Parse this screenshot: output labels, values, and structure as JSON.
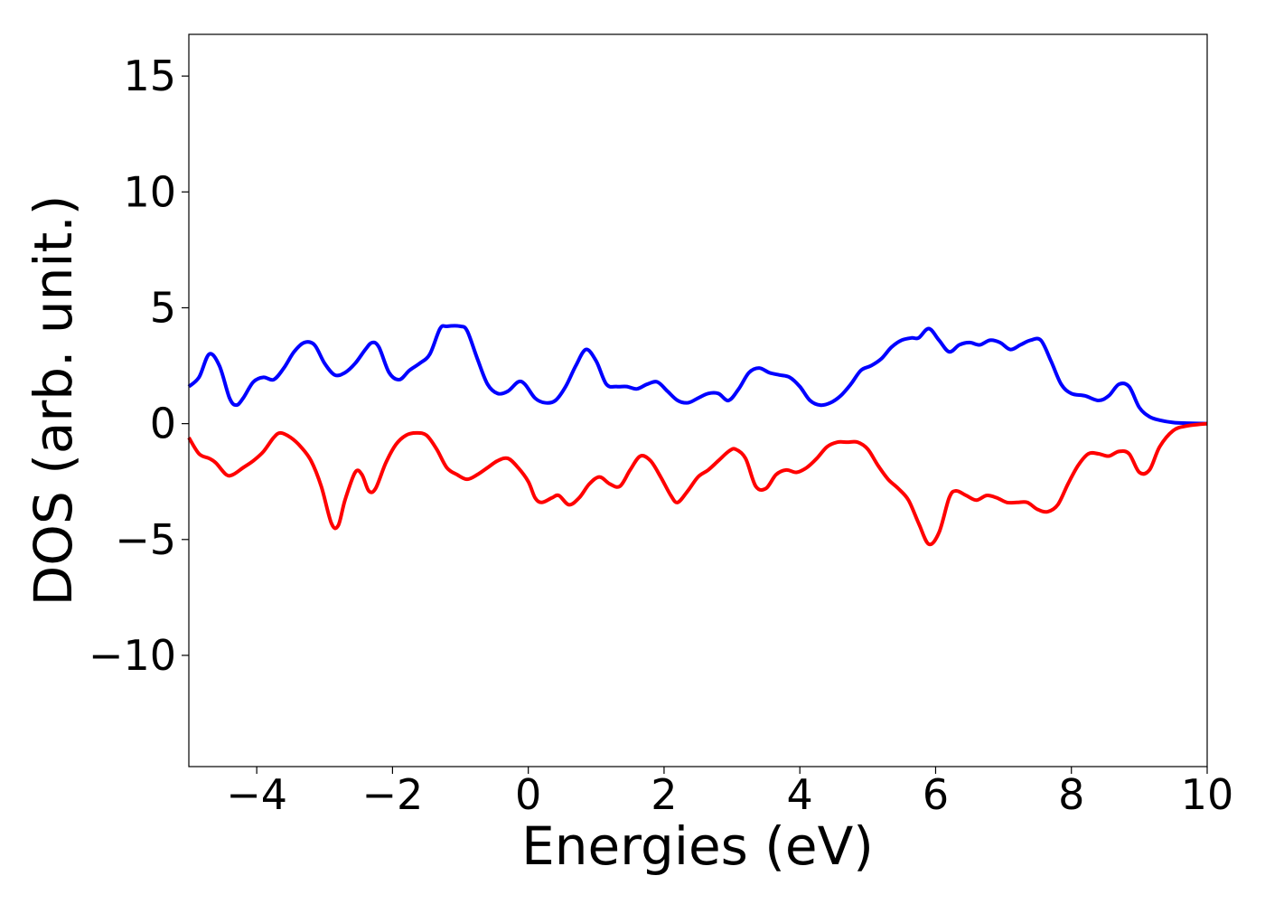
{
  "chart_data": {
    "type": "line",
    "title": "",
    "xlabel": "Energies (eV)",
    "ylabel": "DOS (arb. unit.)",
    "xlim": [
      -5,
      10
    ],
    "ylim": [
      -14.8,
      16.8
    ],
    "xticks": [
      -4,
      -2,
      0,
      2,
      4,
      6,
      8,
      10
    ],
    "xtick_labels": [
      "−4",
      "−2",
      "0",
      "2",
      "4",
      "6",
      "8",
      "10"
    ],
    "yticks": [
      -10,
      -5,
      0,
      5,
      10,
      15
    ],
    "ytick_labels": [
      "−10",
      "−5",
      "0",
      "5",
      "10",
      "15"
    ],
    "grid": false,
    "legend": "none",
    "series": [
      {
        "color": "#0000ff",
        "x": [
          -5.0,
          -4.85,
          -4.7,
          -4.55,
          -4.4,
          -4.3,
          -4.2,
          -4.05,
          -3.9,
          -3.75,
          -3.6,
          -3.45,
          -3.3,
          -3.15,
          -3.0,
          -2.85,
          -2.7,
          -2.55,
          -2.4,
          -2.3,
          -2.2,
          -2.05,
          -1.9,
          -1.75,
          -1.6,
          -1.45,
          -1.3,
          -1.2,
          -1.0,
          -0.9,
          -0.75,
          -0.6,
          -0.45,
          -0.3,
          -0.15,
          -0.05,
          0.1,
          0.25,
          0.4,
          0.55,
          0.7,
          0.85,
          1.0,
          1.15,
          1.3,
          1.45,
          1.6,
          1.75,
          1.9,
          2.05,
          2.2,
          2.35,
          2.5,
          2.65,
          2.8,
          2.95,
          3.1,
          3.25,
          3.4,
          3.55,
          3.7,
          3.85,
          4.0,
          4.15,
          4.3,
          4.45,
          4.6,
          4.75,
          4.9,
          5.05,
          5.2,
          5.35,
          5.5,
          5.65,
          5.75,
          5.9,
          6.05,
          6.2,
          6.35,
          6.5,
          6.65,
          6.8,
          6.95,
          7.1,
          7.25,
          7.4,
          7.55,
          7.7,
          7.85,
          8.0,
          8.2,
          8.4,
          8.55,
          8.7,
          8.85,
          9.0,
          9.15,
          9.3,
          9.5,
          9.7,
          10.0
        ],
        "y": [
          1.6,
          2.0,
          3.0,
          2.5,
          1.1,
          0.8,
          1.1,
          1.8,
          2.0,
          1.9,
          2.4,
          3.1,
          3.5,
          3.4,
          2.6,
          2.1,
          2.2,
          2.6,
          3.2,
          3.5,
          3.3,
          2.2,
          1.9,
          2.3,
          2.6,
          3.0,
          4.1,
          4.2,
          4.2,
          4.0,
          2.8,
          1.7,
          1.3,
          1.4,
          1.8,
          1.7,
          1.1,
          0.9,
          1.0,
          1.6,
          2.5,
          3.2,
          2.7,
          1.7,
          1.6,
          1.6,
          1.5,
          1.7,
          1.8,
          1.4,
          1.0,
          0.9,
          1.1,
          1.3,
          1.3,
          1.0,
          1.5,
          2.2,
          2.4,
          2.2,
          2.1,
          2.0,
          1.6,
          1.0,
          0.8,
          0.9,
          1.2,
          1.7,
          2.3,
          2.5,
          2.8,
          3.3,
          3.6,
          3.7,
          3.7,
          4.1,
          3.6,
          3.1,
          3.4,
          3.5,
          3.4,
          3.6,
          3.5,
          3.2,
          3.4,
          3.6,
          3.6,
          2.7,
          1.7,
          1.3,
          1.2,
          1.0,
          1.2,
          1.7,
          1.6,
          0.7,
          0.3,
          0.15,
          0.05,
          0.02,
          0.0
        ]
      },
      {
        "color": "#ff0000",
        "x": [
          -5.0,
          -4.85,
          -4.7,
          -4.6,
          -4.45,
          -4.35,
          -4.2,
          -4.05,
          -3.9,
          -3.75,
          -3.65,
          -3.5,
          -3.35,
          -3.2,
          -3.05,
          -2.9,
          -2.8,
          -2.7,
          -2.55,
          -2.45,
          -2.35,
          -2.25,
          -2.1,
          -1.95,
          -1.8,
          -1.65,
          -1.5,
          -1.35,
          -1.2,
          -1.05,
          -0.9,
          -0.75,
          -0.6,
          -0.45,
          -0.3,
          -0.15,
          0.0,
          0.1,
          0.2,
          0.35,
          0.45,
          0.6,
          0.75,
          0.9,
          1.05,
          1.2,
          1.35,
          1.5,
          1.65,
          1.8,
          1.95,
          2.1,
          2.2,
          2.35,
          2.5,
          2.65,
          2.8,
          2.95,
          3.05,
          3.2,
          3.35,
          3.5,
          3.65,
          3.8,
          3.95,
          4.1,
          4.25,
          4.4,
          4.55,
          4.7,
          4.85,
          5.0,
          5.15,
          5.3,
          5.45,
          5.6,
          5.75,
          5.9,
          6.05,
          6.2,
          6.3,
          6.45,
          6.6,
          6.75,
          6.9,
          7.05,
          7.2,
          7.35,
          7.5,
          7.65,
          7.8,
          7.95,
          8.1,
          8.25,
          8.4,
          8.55,
          8.7,
          8.85,
          9.0,
          9.15,
          9.3,
          9.5,
          9.7,
          10.0
        ],
        "y": [
          -0.6,
          -1.3,
          -1.5,
          -1.7,
          -2.2,
          -2.2,
          -1.9,
          -1.6,
          -1.2,
          -0.6,
          -0.4,
          -0.6,
          -1.0,
          -1.6,
          -2.7,
          -4.3,
          -4.4,
          -3.3,
          -2.1,
          -2.2,
          -2.9,
          -2.8,
          -1.7,
          -0.9,
          -0.5,
          -0.4,
          -0.5,
          -1.1,
          -1.9,
          -2.2,
          -2.4,
          -2.2,
          -1.9,
          -1.6,
          -1.5,
          -1.9,
          -2.5,
          -3.2,
          -3.4,
          -3.2,
          -3.1,
          -3.5,
          -3.2,
          -2.6,
          -2.3,
          -2.6,
          -2.7,
          -2.0,
          -1.4,
          -1.6,
          -2.3,
          -3.1,
          -3.4,
          -2.9,
          -2.3,
          -2.0,
          -1.6,
          -1.2,
          -1.1,
          -1.5,
          -2.7,
          -2.8,
          -2.2,
          -2.0,
          -2.1,
          -1.9,
          -1.5,
          -1.0,
          -0.8,
          -0.8,
          -0.8,
          -1.1,
          -1.8,
          -2.4,
          -2.8,
          -3.3,
          -4.3,
          -5.2,
          -4.7,
          -3.2,
          -2.9,
          -3.1,
          -3.3,
          -3.1,
          -3.2,
          -3.4,
          -3.4,
          -3.4,
          -3.7,
          -3.8,
          -3.5,
          -2.6,
          -1.8,
          -1.3,
          -1.3,
          -1.4,
          -1.2,
          -1.3,
          -2.1,
          -2.0,
          -1.0,
          -0.3,
          -0.1,
          0.0
        ]
      }
    ]
  }
}
